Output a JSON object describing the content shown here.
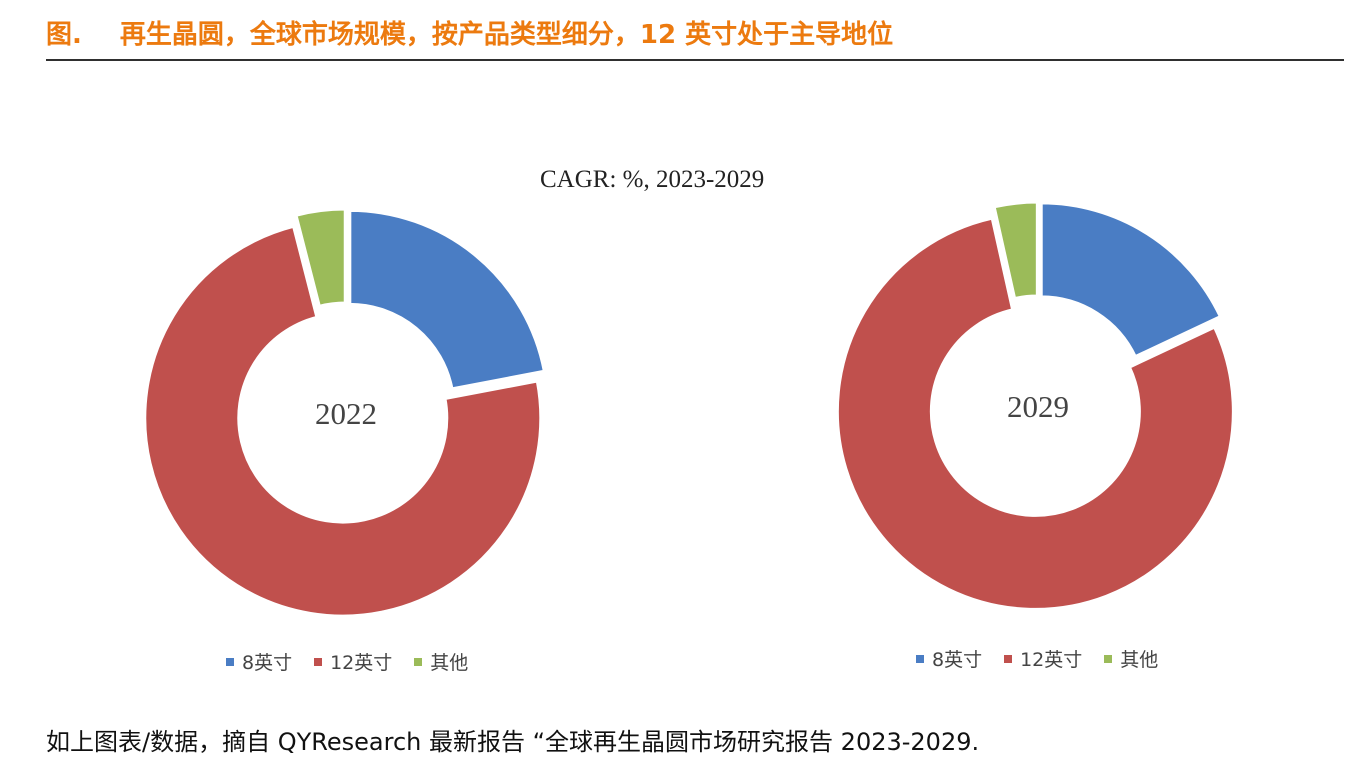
{
  "header": {
    "figure_label": "图.",
    "title": "再生晶圆，全球市场规模，按产品类型细分，12 英寸处于主导地位"
  },
  "subtitle": "CAGR:    %, 2023-2029",
  "colors": {
    "accent": "#ec7a0f",
    "series_8inch": "#4a7dc4",
    "series_12inch": "#c0504d",
    "series_other": "#9bbb59"
  },
  "chart_data": [
    {
      "type": "pie",
      "variant": "donut",
      "center_label": "2022",
      "categories": [
        "8英寸",
        "12英寸",
        "其他"
      ],
      "values": [
        22,
        74,
        4
      ],
      "legend": [
        "8英寸",
        "12英寸",
        "其他"
      ],
      "legend_position": "bottom"
    },
    {
      "type": "pie",
      "variant": "donut",
      "center_label": "2029",
      "categories": [
        "8英寸",
        "12英寸",
        "其他"
      ],
      "values": [
        18,
        78.5,
        3.5
      ],
      "legend": [
        "8英寸",
        "12英寸",
        "其他"
      ],
      "legend_position": "bottom"
    }
  ],
  "footer": {
    "note": "如上图表/数据，摘自 QYResearch 最新报告 “全球再生晶圆市场研究报告 2023-2029."
  }
}
